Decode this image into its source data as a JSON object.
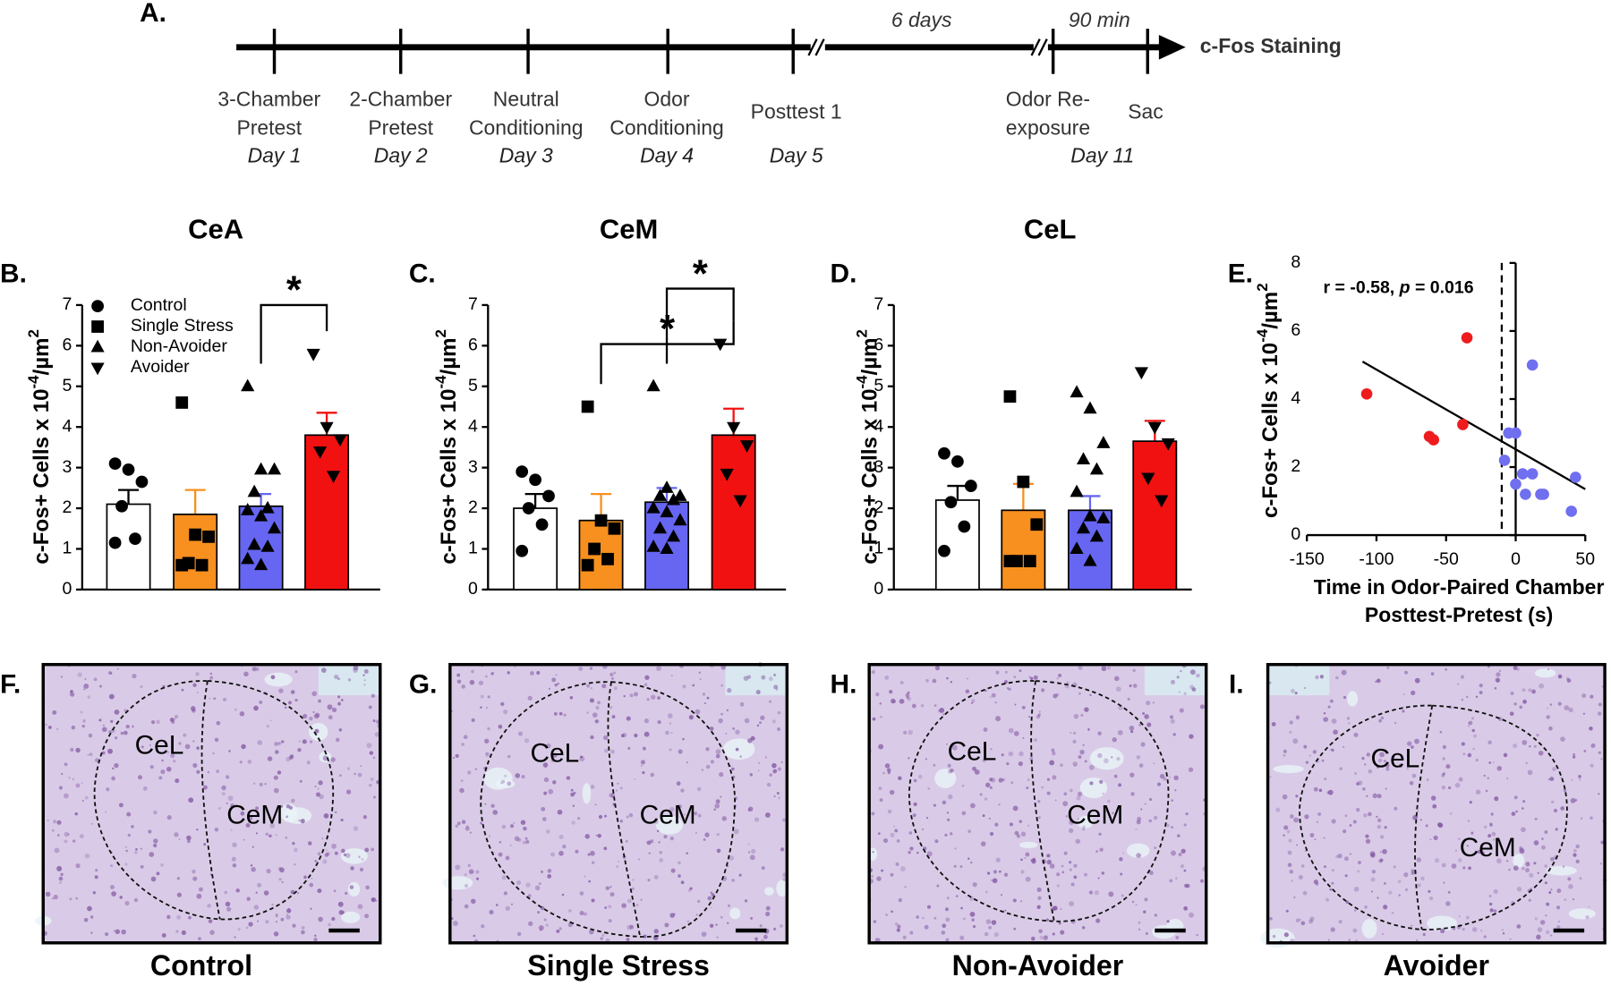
{
  "timeline": {
    "panel": "A.",
    "events": [
      {
        "lines": [
          "3-Chamber",
          "Pretest"
        ],
        "day": "Day 1"
      },
      {
        "lines": [
          "2-Chamber",
          "Pretest"
        ],
        "day": "Day 2"
      },
      {
        "lines": [
          "Neutral",
          "Conditioning"
        ],
        "day": "Day 3"
      },
      {
        "lines": [
          "Odor",
          "Conditioning"
        ],
        "day": "Day 4"
      },
      {
        "lines": [
          "Posttest 1"
        ],
        "day": "Day 5"
      },
      {
        "lines": [
          "Odor Re-",
          "exposure"
        ],
        "day": "Day 11"
      },
      {
        "lines": [
          "Sac"
        ]
      }
    ],
    "gaps": [
      "6 days",
      "90 min"
    ],
    "end_label": "c-Fos Staining"
  },
  "chart_data": [
    {
      "type": "bar",
      "panel": "B.",
      "title": "CeA",
      "ylabel": {
        "text": "c-Fos+ Cells x 10",
        "sup1": "-4",
        "mid": "/µm",
        "sup2": "2"
      },
      "categories": [
        "Control",
        "Single Stress",
        "Non-Avoider",
        "Avoider"
      ],
      "legend": "top-left",
      "colors": [
        "#ffffff",
        "#f7901e",
        "#6666f2",
        "#f21111"
      ],
      "markers": [
        "circle",
        "square",
        "triangle-up",
        "triangle-down"
      ],
      "values": [
        2.1,
        1.85,
        2.05,
        3.8
      ],
      "errors": [
        0.35,
        0.6,
        0.3,
        0.55
      ],
      "points": [
        [
          3.1,
          2.95,
          2.65,
          2.05,
          1.25,
          1.15
        ],
        [
          4.6,
          1.35,
          1.3,
          0.65,
          0.6,
          0.6
        ],
        [
          5.0,
          2.95,
          2.95,
          2.4,
          2.0,
          1.95,
          1.8,
          1.5,
          1.1,
          1.05,
          0.75,
          0.6
        ],
        [
          5.8,
          4.0,
          3.7,
          3.4,
          2.8
        ]
      ],
      "significance": [
        {
          "from": 2,
          "to": 3,
          "label": "*"
        }
      ],
      "ylim": [
        0,
        7
      ],
      "yticks": [
        0,
        1,
        2,
        3,
        4,
        5,
        6,
        7
      ]
    },
    {
      "type": "bar",
      "panel": "C.",
      "title": "CeM",
      "ylabel": {
        "text": "c-Fos+ Cells x 10",
        "sup1": "-4",
        "mid": "/µm",
        "sup2": "2"
      },
      "colors": [
        "#ffffff",
        "#f7901e",
        "#6666f2",
        "#f21111"
      ],
      "markers": [
        "circle",
        "square",
        "triangle-up",
        "triangle-down"
      ],
      "values": [
        2.0,
        1.7,
        2.15,
        3.8
      ],
      "errors": [
        0.35,
        0.65,
        0.35,
        0.65
      ],
      "points": [
        [
          2.9,
          2.7,
          2.3,
          2.0,
          1.6,
          0.95
        ],
        [
          4.5,
          1.7,
          1.5,
          1.0,
          0.75,
          0.6
        ],
        [
          5.0,
          2.5,
          2.3,
          2.3,
          2.2,
          2.0,
          1.9,
          1.7,
          1.5,
          1.3,
          1.05,
          1.0
        ],
        [
          6.05,
          4.0,
          3.55,
          2.85,
          2.2
        ]
      ],
      "significance": [
        {
          "from": 1,
          "to": 3,
          "label": "*"
        },
        {
          "from": 2,
          "to": 3,
          "label": "*"
        }
      ],
      "ylim": [
        0,
        7
      ],
      "yticks": [
        0,
        1,
        2,
        3,
        4,
        5,
        6,
        7
      ]
    },
    {
      "type": "bar",
      "panel": "D.",
      "title": "CeL",
      "ylabel": {
        "text": "c-Fos+ Cells x 10",
        "sup1": "-4",
        "mid": "/µm",
        "sup2": "2"
      },
      "colors": [
        "#ffffff",
        "#f7901e",
        "#6666f2",
        "#f21111"
      ],
      "markers": [
        "circle",
        "square",
        "triangle-up",
        "triangle-down"
      ],
      "values": [
        2.2,
        1.95,
        1.95,
        3.65
      ],
      "errors": [
        0.35,
        0.65,
        0.35,
        0.5
      ],
      "points": [
        [
          3.35,
          3.15,
          2.55,
          2.15,
          1.55,
          0.95
        ],
        [
          4.75,
          2.65,
          1.6,
          0.7,
          0.7,
          0.7
        ],
        [
          4.85,
          4.45,
          3.6,
          3.2,
          2.95,
          2.4,
          1.8,
          1.75,
          1.5,
          1.3,
          1.0,
          0.7
        ],
        [
          5.35,
          4.0,
          3.6,
          2.75,
          2.2
        ]
      ],
      "ylim": [
        0,
        7
      ],
      "yticks": [
        0,
        1,
        2,
        3,
        4,
        5,
        6,
        7
      ]
    },
    {
      "type": "scatter",
      "panel": "E.",
      "ylabel": {
        "text": "c-Fos+ Cells x 10",
        "sup1": "-4",
        "mid": "/µm",
        "sup2": "2"
      },
      "xlabel": [
        "Time in Odor-Paired Chamber",
        "Posttest-Pretest (s)"
      ],
      "annotation": {
        "r": "r = -0.58, ",
        "p": "p",
        "rest": " = 0.016"
      },
      "series": [
        {
          "color": "#ee1c1c",
          "x": [
            -107,
            -35,
            -62,
            -59,
            -38
          ],
          "y": [
            4.15,
            5.8,
            2.9,
            2.8,
            3.25
          ]
        },
        {
          "color": "#6f6ff0",
          "x": [
            12,
            -5,
            0,
            -8,
            0,
            5,
            12,
            7,
            18,
            20,
            43,
            40
          ],
          "y": [
            5.0,
            3.0,
            3.0,
            2.2,
            1.5,
            1.8,
            1.8,
            1.2,
            1.2,
            1.2,
            1.7,
            0.7
          ]
        }
      ],
      "fit": {
        "x": [
          -110,
          50
        ],
        "y": [
          5.1,
          1.35
        ]
      },
      "reference_line_x": -10,
      "xlim": [
        -150,
        50
      ],
      "ylim": [
        0,
        8
      ],
      "xticks": [
        -150,
        -100,
        -50,
        0,
        50
      ],
      "yticks": [
        0,
        2,
        4,
        6,
        8
      ]
    }
  ],
  "images": {
    "panels": [
      {
        "letter": "F.",
        "regions": [
          "CeL",
          "CeM"
        ],
        "caption": "Control"
      },
      {
        "letter": "G.",
        "regions": [
          "CeL",
          "CeM"
        ],
        "caption": "Single Stress"
      },
      {
        "letter": "H.",
        "regions": [
          "CeL",
          "CeM"
        ],
        "caption": "Non-Avoider"
      },
      {
        "letter": "I.",
        "regions": [
          "CeL",
          "CeM"
        ],
        "caption": "Avoider"
      }
    ]
  }
}
